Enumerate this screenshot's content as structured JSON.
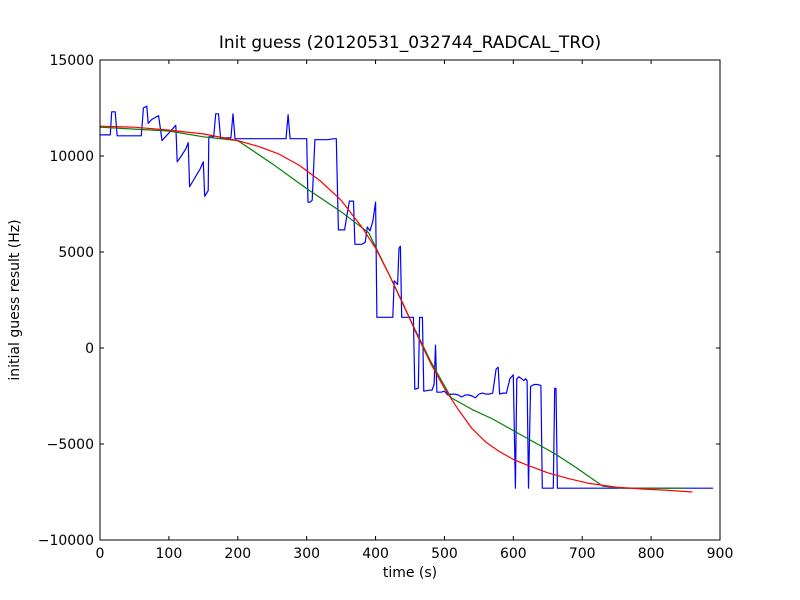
{
  "chart_data": {
    "type": "line",
    "title": "Init guess (20120531_032744_RADCAL_TRO)",
    "xlabel": "time (s)",
    "ylabel": "initial guess result (Hz)",
    "xlim": [
      0,
      900
    ],
    "ylim": [
      -10000,
      15000
    ],
    "xticks": [
      0,
      100,
      200,
      300,
      400,
      500,
      600,
      700,
      800,
      900
    ],
    "yticks": [
      -10000,
      -5000,
      0,
      5000,
      10000,
      15000
    ],
    "grid": false,
    "legend": "none",
    "series": [
      {
        "color": "#0000ff",
        "points": [
          [
            0,
            11100
          ],
          [
            5,
            11100
          ],
          [
            10,
            11100
          ],
          [
            15,
            11100
          ],
          [
            17,
            12300
          ],
          [
            22,
            12300
          ],
          [
            25,
            11050
          ],
          [
            30,
            11050
          ],
          [
            40,
            11050
          ],
          [
            50,
            11050
          ],
          [
            60,
            11050
          ],
          [
            63,
            12500
          ],
          [
            68,
            12600
          ],
          [
            70,
            11700
          ],
          [
            75,
            11900
          ],
          [
            80,
            12000
          ],
          [
            85,
            12100
          ],
          [
            90,
            10800
          ],
          [
            95,
            11000
          ],
          [
            100,
            11200
          ],
          [
            105,
            11400
          ],
          [
            110,
            11600
          ],
          [
            112,
            9700
          ],
          [
            118,
            10000
          ],
          [
            125,
            10400
          ],
          [
            128,
            10700
          ],
          [
            130,
            8400
          ],
          [
            135,
            8700
          ],
          [
            140,
            9000
          ],
          [
            145,
            9300
          ],
          [
            150,
            9700
          ],
          [
            152,
            7900
          ],
          [
            157,
            8200
          ],
          [
            158,
            11000
          ],
          [
            165,
            11000
          ],
          [
            168,
            12200
          ],
          [
            172,
            12200
          ],
          [
            175,
            10900
          ],
          [
            180,
            10950
          ],
          [
            185,
            10950
          ],
          [
            190,
            10950
          ],
          [
            193,
            12200
          ],
          [
            196,
            10900
          ],
          [
            200,
            10900
          ],
          [
            220,
            10900
          ],
          [
            240,
            10900
          ],
          [
            260,
            10900
          ],
          [
            270,
            10900
          ],
          [
            273,
            12150
          ],
          [
            276,
            10900
          ],
          [
            280,
            10900
          ],
          [
            300,
            10900
          ],
          [
            302,
            7600
          ],
          [
            305,
            7600
          ],
          [
            308,
            7700
          ],
          [
            312,
            10850
          ],
          [
            320,
            10850
          ],
          [
            330,
            10850
          ],
          [
            340,
            10900
          ],
          [
            343,
            10900
          ],
          [
            346,
            6150
          ],
          [
            355,
            6150
          ],
          [
            358,
            6800
          ],
          [
            362,
            7650
          ],
          [
            368,
            7650
          ],
          [
            370,
            5400
          ],
          [
            380,
            5400
          ],
          [
            385,
            5500
          ],
          [
            388,
            6300
          ],
          [
            392,
            6100
          ],
          [
            396,
            6600
          ],
          [
            400,
            7600
          ],
          [
            402,
            1600
          ],
          [
            410,
            1600
          ],
          [
            420,
            1600
          ],
          [
            425,
            1600
          ],
          [
            427,
            3500
          ],
          [
            432,
            3300
          ],
          [
            434,
            5200
          ],
          [
            436,
            5300
          ],
          [
            438,
            1600
          ],
          [
            445,
            1600
          ],
          [
            450,
            1600
          ],
          [
            455,
            1600
          ],
          [
            457,
            -2150
          ],
          [
            462,
            -2100
          ],
          [
            464,
            1600
          ],
          [
            468,
            1600
          ],
          [
            470,
            -2250
          ],
          [
            478,
            -2200
          ],
          [
            482,
            -2200
          ],
          [
            485,
            -1900
          ],
          [
            487,
            150
          ],
          [
            489,
            -2300
          ],
          [
            495,
            -2300
          ],
          [
            500,
            -2250
          ],
          [
            505,
            -2450
          ],
          [
            510,
            -2400
          ],
          [
            515,
            -2400
          ],
          [
            520,
            -2450
          ],
          [
            525,
            -2550
          ],
          [
            530,
            -2450
          ],
          [
            535,
            -2450
          ],
          [
            540,
            -2500
          ],
          [
            545,
            -2600
          ],
          [
            550,
            -2400
          ],
          [
            555,
            -2350
          ],
          [
            560,
            -2400
          ],
          [
            565,
            -2400
          ],
          [
            570,
            -2350
          ],
          [
            575,
            -1100
          ],
          [
            578,
            -1000
          ],
          [
            580,
            -2400
          ],
          [
            585,
            -2350
          ],
          [
            590,
            -2350
          ],
          [
            595,
            -1600
          ],
          [
            600,
            -1400
          ],
          [
            603,
            -7300
          ],
          [
            605,
            -1600
          ],
          [
            608,
            -1500
          ],
          [
            612,
            -1600
          ],
          [
            615,
            -1700
          ],
          [
            618,
            -1600
          ],
          [
            620,
            -1700
          ],
          [
            622,
            -7300
          ],
          [
            625,
            -2000
          ],
          [
            630,
            -1900
          ],
          [
            635,
            -1900
          ],
          [
            640,
            -1950
          ],
          [
            642,
            -7300
          ],
          [
            650,
            -7300
          ],
          [
            655,
            -7300
          ],
          [
            658,
            -7300
          ],
          [
            660,
            -2100
          ],
          [
            662,
            -2100
          ],
          [
            664,
            -7300
          ],
          [
            680,
            -7300
          ],
          [
            700,
            -7300
          ],
          [
            720,
            -7300
          ],
          [
            740,
            -7300
          ],
          [
            760,
            -7300
          ],
          [
            780,
            -7300
          ],
          [
            800,
            -7300
          ],
          [
            820,
            -7300
          ],
          [
            840,
            -7300
          ],
          [
            860,
            -7300
          ],
          [
            880,
            -7300
          ],
          [
            890,
            -7300
          ]
        ]
      },
      {
        "color": "#008000",
        "points": [
          [
            0,
            11500
          ],
          [
            50,
            11400
          ],
          [
            100,
            11300
          ],
          [
            150,
            11000
          ],
          [
            200,
            10800
          ],
          [
            250,
            9600
          ],
          [
            300,
            8300
          ],
          [
            350,
            7100
          ],
          [
            390,
            6000
          ],
          [
            420,
            3800
          ],
          [
            450,
            1500
          ],
          [
            480,
            -700
          ],
          [
            510,
            -2600
          ],
          [
            540,
            -3200
          ],
          [
            570,
            -3700
          ],
          [
            600,
            -4300
          ],
          [
            630,
            -4900
          ],
          [
            660,
            -5500
          ],
          [
            690,
            -6200
          ],
          [
            710,
            -6700
          ],
          [
            730,
            -7200
          ],
          [
            760,
            -7300
          ],
          [
            800,
            -7300
          ],
          [
            850,
            -7300
          ]
        ]
      },
      {
        "color": "#ff0000",
        "points": [
          [
            0,
            11550
          ],
          [
            50,
            11500
          ],
          [
            100,
            11350
          ],
          [
            150,
            11150
          ],
          [
            200,
            10800
          ],
          [
            230,
            10500
          ],
          [
            260,
            10100
          ],
          [
            290,
            9500
          ],
          [
            320,
            8700
          ],
          [
            350,
            7700
          ],
          [
            380,
            6300
          ],
          [
            400,
            5200
          ],
          [
            420,
            3800
          ],
          [
            440,
            2300
          ],
          [
            460,
            700
          ],
          [
            480,
            -800
          ],
          [
            500,
            -2100
          ],
          [
            520,
            -3200
          ],
          [
            540,
            -4200
          ],
          [
            560,
            -4900
          ],
          [
            580,
            -5400
          ],
          [
            600,
            -5800
          ],
          [
            620,
            -6100
          ],
          [
            650,
            -6500
          ],
          [
            680,
            -6800
          ],
          [
            710,
            -7050
          ],
          [
            750,
            -7250
          ],
          [
            790,
            -7350
          ],
          [
            820,
            -7400
          ],
          [
            860,
            -7500
          ]
        ]
      }
    ]
  }
}
